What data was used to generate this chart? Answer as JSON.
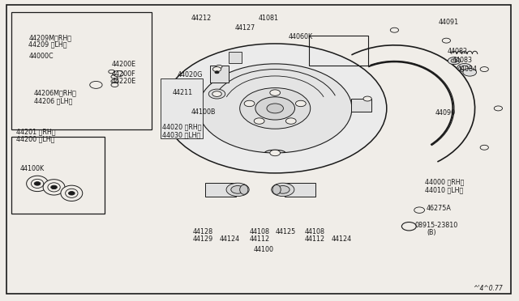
{
  "bg_color": "#f0ede8",
  "line_color": "#1a1a1a",
  "text_color": "#1a1a1a",
  "diagram_num": "^'4^0.77",
  "fs": 5.8,
  "fs_small": 5.2,
  "labels": {
    "44209M_RH": [
      0.058,
      0.855,
      "44209M〈RH〉"
    ],
    "44209_LH": [
      0.058,
      0.828,
      "44209 〈LH〉"
    ],
    "44000C": [
      0.058,
      0.795,
      "44000C"
    ],
    "44200E": [
      0.218,
      0.77,
      "44200E"
    ],
    "44200F": [
      0.218,
      0.743,
      "44200F"
    ],
    "44220E": [
      0.218,
      0.718,
      "44220E"
    ],
    "44206M_RH": [
      0.068,
      0.675,
      "44206M〈RH〉"
    ],
    "44206_LH": [
      0.068,
      0.65,
      "44206 〈LH〉"
    ],
    "44201_RH": [
      0.035,
      0.555,
      "44201 〈RH〉"
    ],
    "44200_LH": [
      0.035,
      0.53,
      "44200 〈LH〉"
    ],
    "44100K": [
      0.04,
      0.435,
      "44100K"
    ],
    "44212": [
      0.37,
      0.935,
      "44212"
    ],
    "41081": [
      0.5,
      0.935,
      "41081"
    ],
    "44127": [
      0.455,
      0.9,
      "44127"
    ],
    "44060K": [
      0.56,
      0.875,
      "44060K"
    ],
    "44020G": [
      0.345,
      0.745,
      "44020G"
    ],
    "44211": [
      0.335,
      0.685,
      "44211"
    ],
    "44100B": [
      0.37,
      0.62,
      "44100B"
    ],
    "44020_RH": [
      0.315,
      0.575,
      "44020 〈RH〉"
    ],
    "44030_LH": [
      0.315,
      0.548,
      "44030 〈LH〉"
    ],
    "44091": [
      0.848,
      0.92,
      "44091"
    ],
    "44082": [
      0.865,
      0.82,
      "44082"
    ],
    "44083": [
      0.875,
      0.79,
      "44083"
    ],
    "44084": [
      0.882,
      0.76,
      "44084"
    ],
    "44090": [
      0.84,
      0.618,
      "44090"
    ],
    "44000_RH": [
      0.82,
      0.39,
      "44000 〈RH〉"
    ],
    "44010_LH": [
      0.82,
      0.362,
      "44010 〈LH〉"
    ],
    "46275A": [
      0.825,
      0.302,
      "46275A"
    ],
    "08915": [
      0.79,
      0.245,
      "08915-23810"
    ],
    "B": [
      0.82,
      0.218,
      "(B)"
    ],
    "44128": [
      0.373,
      0.218,
      "44128"
    ],
    "44129": [
      0.373,
      0.193,
      "44129"
    ],
    "44124a": [
      0.425,
      0.193,
      "44124"
    ],
    "44108a": [
      0.483,
      0.218,
      "44108"
    ],
    "44112a": [
      0.483,
      0.193,
      "44112"
    ],
    "44125": [
      0.533,
      0.218,
      "44125"
    ],
    "44108b": [
      0.59,
      0.218,
      "44108"
    ],
    "44112b": [
      0.59,
      0.193,
      "44112"
    ],
    "44124b": [
      0.643,
      0.193,
      "44124"
    ],
    "44100": [
      0.49,
      0.155,
      "44100"
    ]
  }
}
